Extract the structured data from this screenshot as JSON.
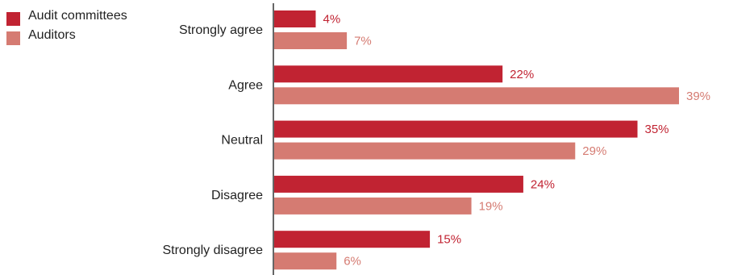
{
  "chart_data": {
    "type": "bar",
    "orientation": "horizontal",
    "categories": [
      "Strongly agree",
      "Agree",
      "Neutral",
      "Disagree",
      "Strongly disagree"
    ],
    "series": [
      {
        "name": "Audit committees",
        "values": [
          4,
          22,
          35,
          24,
          15
        ],
        "color": "#c12332"
      },
      {
        "name": "Auditors",
        "values": [
          7,
          39,
          29,
          19,
          6
        ],
        "color": "#d57b72"
      }
    ],
    "value_suffix": "%",
    "xlim": [
      0,
      39
    ],
    "grid": false,
    "legend_position": "top-left"
  }
}
